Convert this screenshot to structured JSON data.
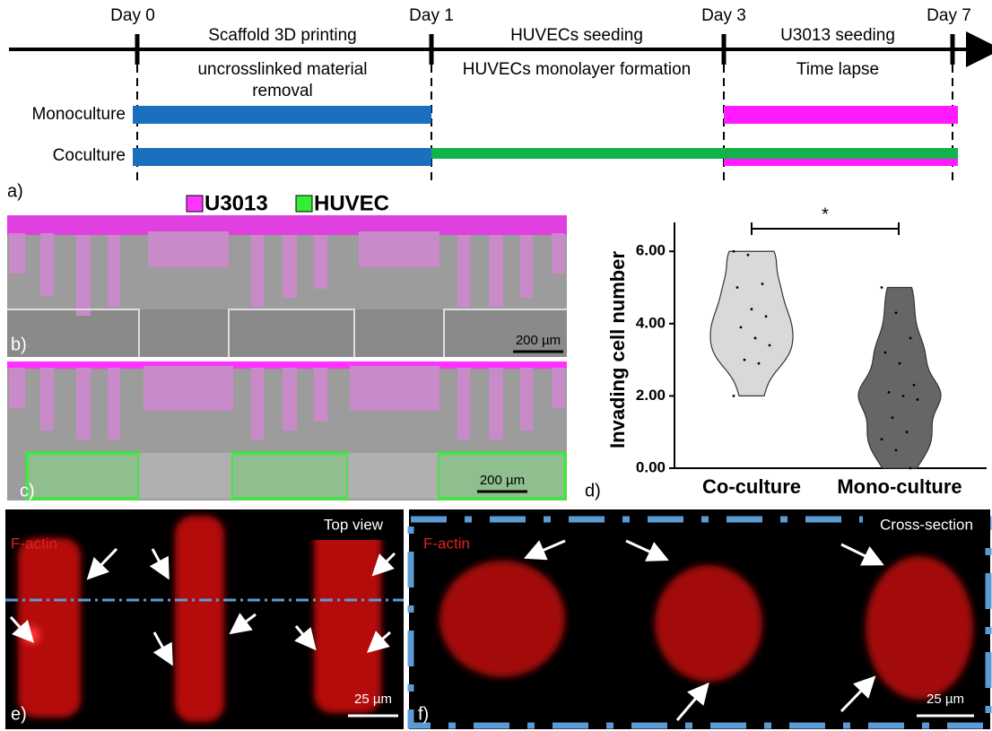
{
  "timeline": {
    "days": [
      "Day 0",
      "Day 1",
      "Day 3",
      "Day 7"
    ],
    "phases_top": [
      "Scaffold 3D printing",
      "HUVECs seeding",
      "U3013 seeding"
    ],
    "phases_bottom": [
      "uncrosslinked material removal",
      "HUVECs monolayer formation",
      "Time lapse"
    ],
    "rows": [
      "Monoculture",
      "Coculture"
    ]
  },
  "panel_labels": [
    "a)",
    "b)",
    "c)",
    "d)",
    "e)",
    "f)"
  ],
  "legend": [
    "U3013",
    "HUVEC"
  ],
  "scale_bars": [
    "200 µm",
    "200 µm",
    "25 µm",
    "25 µm"
  ],
  "stain_labels": [
    "F-actin",
    "F-actin"
  ],
  "view_labels": [
    "Top view",
    "Cross-section"
  ],
  "chart_data": {
    "type": "violin",
    "ylabel": "Invading cell number",
    "significance": "*",
    "categories": [
      "Co-culture",
      "Mono-culture"
    ],
    "series": [
      {
        "name": "Co-culture",
        "color": "#d9d9d9",
        "values": [
          6.0,
          5.9,
          5.1,
          5.0,
          4.4,
          4.2,
          3.9,
          3.6,
          3.4,
          3.0,
          2.9,
          2.0
        ]
      },
      {
        "name": "Mono-culture",
        "color": "#666666",
        "values": [
          5.0,
          4.3,
          3.6,
          3.2,
          2.9,
          2.3,
          2.1,
          2.0,
          1.9,
          1.4,
          1.0,
          0.8,
          0.5,
          0.0
        ]
      }
    ],
    "ylim": [
      0,
      6.8
    ],
    "yticks": [
      {
        "value": 0,
        "label": "0.00"
      },
      {
        "value": 2,
        "label": "2.00"
      },
      {
        "value": 4,
        "label": "4.00"
      },
      {
        "value": 6,
        "label": "6.00"
      }
    ]
  }
}
